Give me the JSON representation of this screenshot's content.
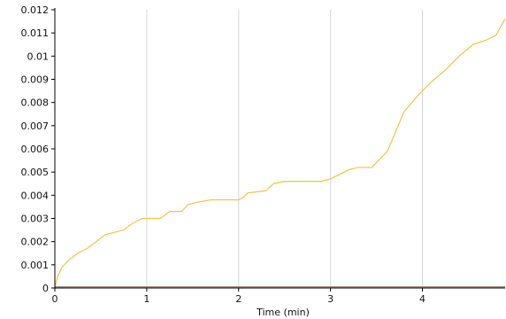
{
  "chart_data": {
    "type": "line",
    "xlabel": "Time (min)",
    "ylabel": "",
    "xlim": [
      0,
      4.9
    ],
    "ylim": [
      0,
      0.012
    ],
    "x_ticks": [
      0,
      1,
      2,
      3,
      4
    ],
    "x_tick_labels": [
      "0",
      "1",
      "2",
      "3",
      "4"
    ],
    "y_ticks": [
      0,
      0.001,
      0.002,
      0.003,
      0.004,
      0.005,
      0.006,
      0.007,
      0.008,
      0.009,
      0.01,
      0.011,
      0.012
    ],
    "y_tick_labels": [
      "0",
      "0.001",
      "0.002",
      "0.003",
      "0.004",
      "0.005",
      "0.006",
      "0.007",
      "0.008",
      "0.009",
      "0.01",
      "0.011",
      "0.012"
    ],
    "grid": "vertical",
    "series": [
      {
        "color": "#f5c242",
        "x": [
          0,
          0.03,
          0.08,
          0.15,
          0.25,
          0.35,
          0.45,
          0.55,
          0.65,
          0.75,
          0.85,
          0.95,
          1.0,
          1.15,
          1.25,
          1.38,
          1.45,
          1.55,
          1.7,
          1.85,
          2.0,
          2.05,
          2.1,
          2.3,
          2.38,
          2.5,
          2.7,
          2.9,
          3.0,
          3.1,
          3.2,
          3.3,
          3.45,
          3.62,
          3.8,
          3.95,
          4.1,
          4.25,
          4.4,
          4.55,
          4.7,
          4.8,
          4.9
        ],
        "y": [
          0,
          0.0005,
          0.0009,
          0.0012,
          0.0015,
          0.0017,
          0.002,
          0.0023,
          0.0024,
          0.0025,
          0.0028,
          0.003,
          0.003,
          0.003,
          0.0033,
          0.0033,
          0.0036,
          0.0037,
          0.0038,
          0.0038,
          0.0038,
          0.0039,
          0.0041,
          0.0042,
          0.0045,
          0.0046,
          0.0046,
          0.0046,
          0.0047,
          0.0049,
          0.0051,
          0.0052,
          0.0052,
          0.0059,
          0.0076,
          0.0083,
          0.0089,
          0.0094,
          0.01,
          0.0105,
          0.0107,
          0.0109,
          0.0116
        ]
      },
      {
        "color": "#d9534f",
        "x": [
          0,
          4.9
        ],
        "y": [
          5e-05,
          5e-05
        ]
      },
      {
        "color": "#5cb85c",
        "x": [
          0,
          4.9
        ],
        "y": [
          3e-05,
          3e-05
        ]
      },
      {
        "color": "#6aa0d8",
        "x": [
          0,
          4.9
        ],
        "y": [
          2e-05,
          2e-05
        ]
      }
    ]
  }
}
